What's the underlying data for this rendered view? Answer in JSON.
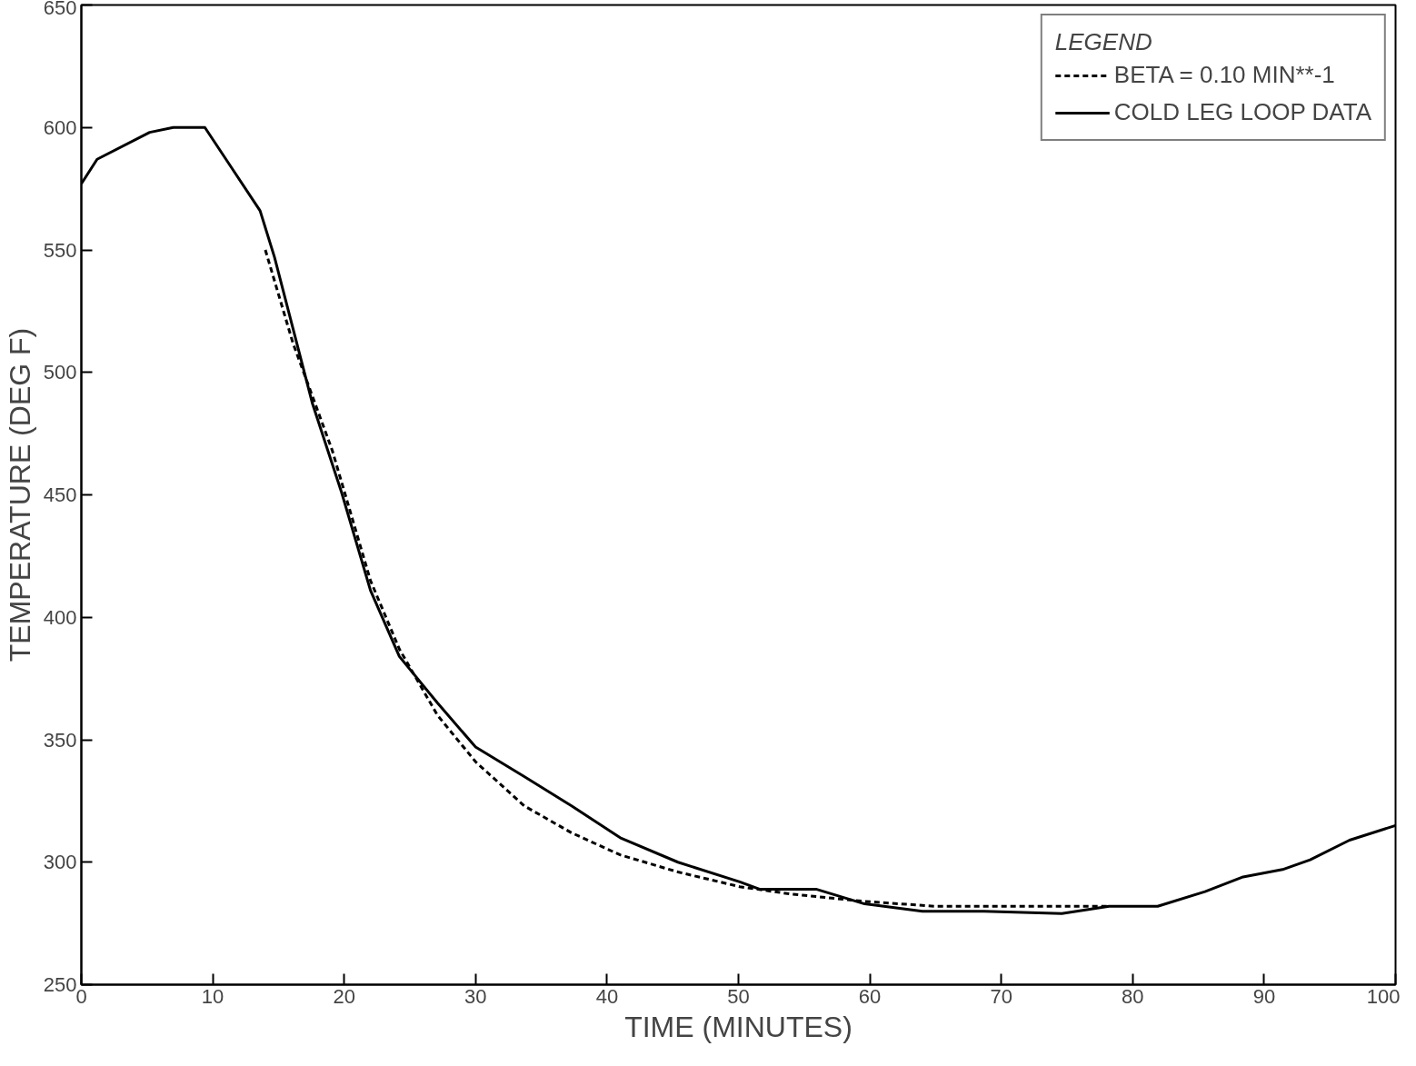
{
  "chart_data": {
    "type": "line",
    "xlabel": "TIME (MINUTES)",
    "ylabel": "TEMPERATURE (DEG F)",
    "legend_title": "LEGEND",
    "xlim": [
      0,
      100
    ],
    "xticks": [
      0,
      10,
      20,
      30,
      40,
      50,
      60,
      70,
      80,
      90,
      100
    ],
    "ylim": [
      250,
      650
    ],
    "yticks": [
      250,
      300,
      350,
      400,
      450,
      500,
      550,
      600,
      650
    ],
    "grid": false,
    "legend": "top right",
    "marker": "none",
    "series": [
      {
        "name": "BETA = 0.10 MIN**-1",
        "color": "#000000",
        "line_style": "dashed",
        "x": [
          14,
          16.1,
          19.1,
          22,
          24.2,
          27.1,
          30,
          33.7,
          37.3,
          41,
          45.4,
          50.1,
          54,
          59.6,
          65,
          72.4,
          78.2
        ],
        "values": [
          550,
          512,
          468,
          415,
          387,
          360,
          341,
          323,
          312,
          303,
          296,
          290,
          287,
          284,
          282,
          282,
          282
        ]
      },
      {
        "name": "COLD LEG LOOP DATA",
        "color": "#000000",
        "line_style": "solid",
        "x": [
          0,
          1.2,
          5.2,
          7,
          9.4,
          13.6,
          14.7,
          17.6,
          19.8,
          22,
          24.2,
          27.1,
          30,
          33.7,
          37.3,
          41,
          45.4,
          50.1,
          51.6,
          55.9,
          59.6,
          64,
          68.7,
          74.6,
          78.2,
          81.9,
          85.5,
          88.4,
          91.4,
          93.5,
          96.5,
          100
        ],
        "values": [
          577,
          587,
          598,
          600,
          600,
          566,
          547,
          487,
          451,
          411,
          384,
          365,
          347,
          335,
          323,
          310,
          300,
          292,
          289,
          289,
          283,
          280,
          280,
          279,
          282,
          282,
          288,
          294,
          297,
          301,
          309,
          315
        ]
      }
    ]
  }
}
